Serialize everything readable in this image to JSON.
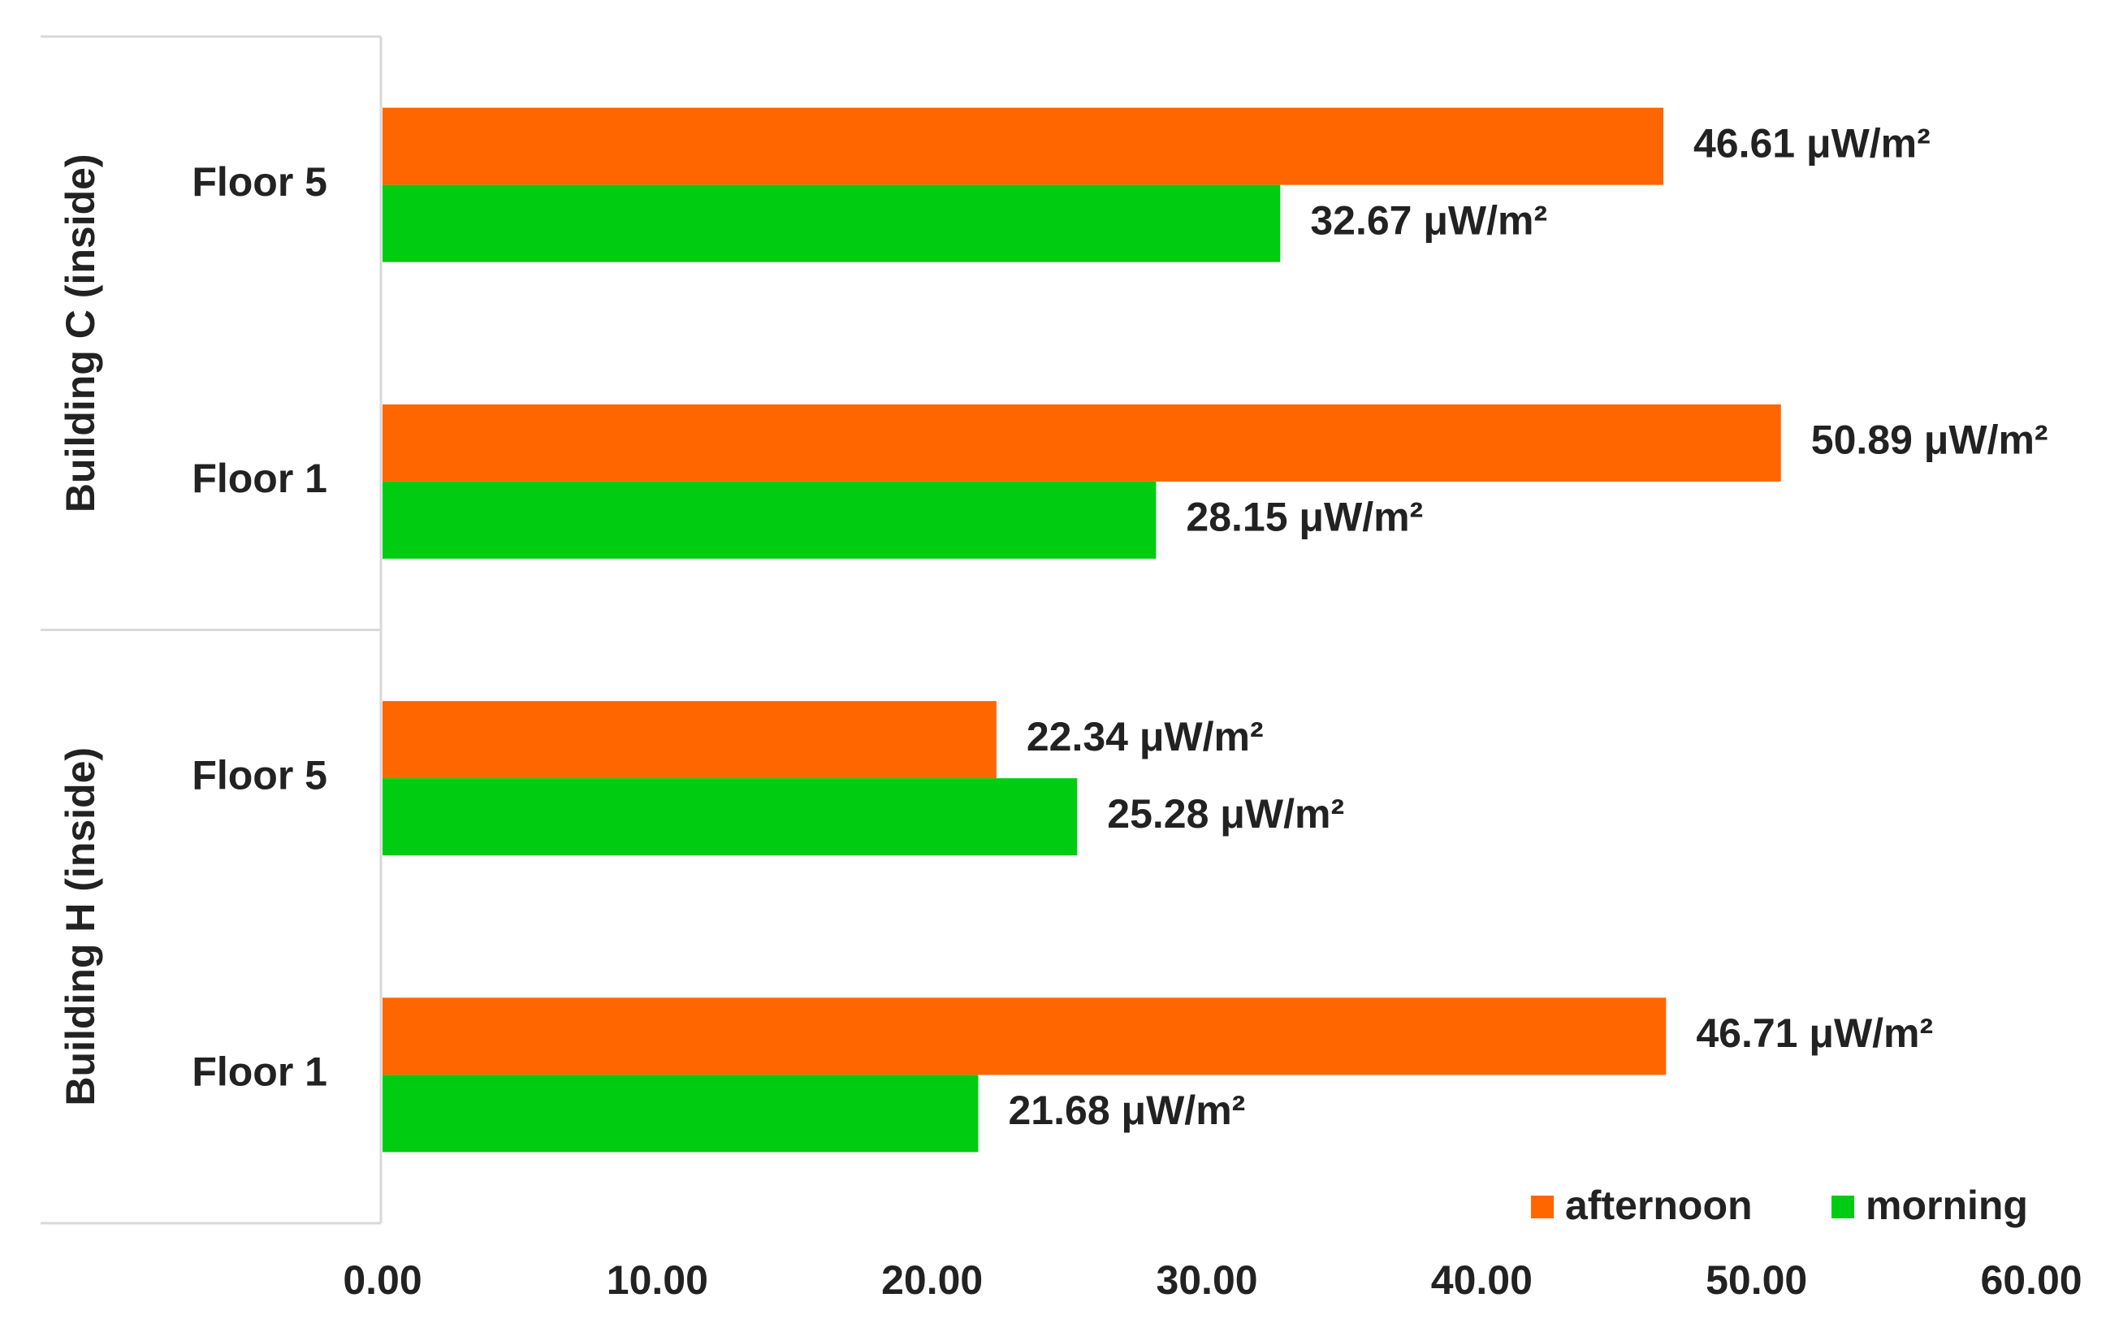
{
  "chart_data": {
    "type": "bar",
    "orientation": "horizontal",
    "groups": [
      {
        "name": "Building C (inside)",
        "categories": [
          "Floor 5",
          "Floor 1"
        ]
      },
      {
        "name": "Building H (inside)",
        "categories": [
          "Floor 5",
          "Floor 1"
        ]
      }
    ],
    "series": [
      {
        "name": "afternoon",
        "color": "#ff6600",
        "values": [
          46.61,
          50.89,
          22.34,
          46.71
        ],
        "value_labels": [
          "46.61 μW/m²",
          "50.89 μW/m²",
          "22.34 μW/m²",
          "46.71 μW/m²"
        ]
      },
      {
        "name": "morning",
        "color": "#00cc11",
        "values": [
          32.67,
          28.15,
          25.28,
          21.68
        ],
        "value_labels": [
          "32.67 μW/m²",
          "28.15 μW/m²",
          "25.28 μW/m²",
          "21.68 μW/m²"
        ]
      }
    ],
    "xlim": [
      0,
      60
    ],
    "xticks": [
      {
        "value": 0,
        "label": "0.00"
      },
      {
        "value": 10,
        "label": "10.00"
      },
      {
        "value": 20,
        "label": "20.00"
      },
      {
        "value": 30,
        "label": "30.00"
      },
      {
        "value": 40,
        "label": "40.00"
      },
      {
        "value": 50,
        "label": "50.00"
      },
      {
        "value": 60,
        "label": "60.00"
      }
    ],
    "grid": false,
    "legend": "bottom-right"
  }
}
